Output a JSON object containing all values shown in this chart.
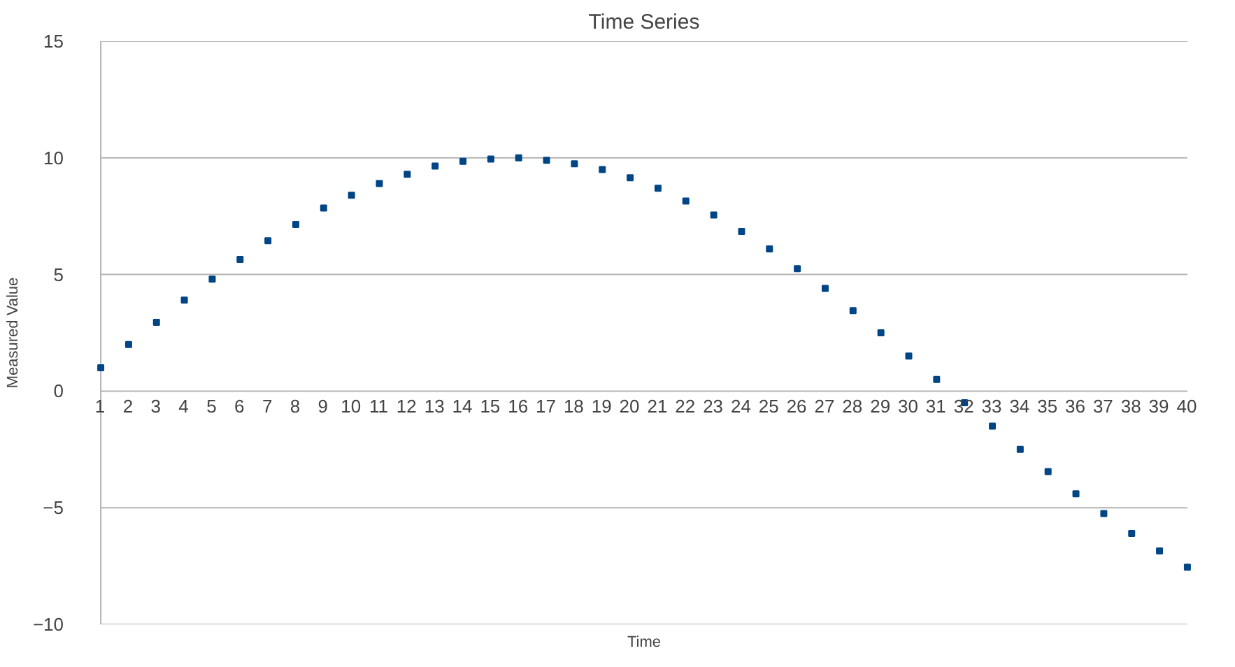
{
  "chart_data": {
    "type": "scatter",
    "title": "Time Series",
    "xlabel": "Time",
    "ylabel": "Measured Value",
    "x": [
      1,
      2,
      3,
      4,
      5,
      6,
      7,
      8,
      9,
      10,
      11,
      12,
      13,
      14,
      15,
      16,
      17,
      18,
      19,
      20,
      21,
      22,
      23,
      24,
      25,
      26,
      27,
      28,
      29,
      30,
      31,
      32,
      33,
      34,
      35,
      36,
      37,
      38,
      39,
      40
    ],
    "series": [
      {
        "color": "#004586",
        "values": [
          1.0,
          2.0,
          2.95,
          3.9,
          4.8,
          5.65,
          6.45,
          7.15,
          7.85,
          8.4,
          8.9,
          9.3,
          9.65,
          9.85,
          9.95,
          10.0,
          9.9,
          9.75,
          9.5,
          9.15,
          8.7,
          8.15,
          7.55,
          6.85,
          6.1,
          5.25,
          4.4,
          3.45,
          2.5,
          1.5,
          0.5,
          -0.5,
          -1.5,
          -2.5,
          -3.45,
          -4.4,
          -5.25,
          -6.1,
          -6.85,
          -7.55
        ]
      }
    ],
    "xlim": [
      1,
      40
    ],
    "xticks": [
      1,
      2,
      3,
      4,
      5,
      6,
      7,
      8,
      9,
      10,
      11,
      12,
      13,
      14,
      15,
      16,
      17,
      18,
      19,
      20,
      21,
      22,
      23,
      24,
      25,
      26,
      27,
      28,
      29,
      30,
      31,
      32,
      33,
      34,
      35,
      36,
      37,
      38,
      39,
      40
    ],
    "ylim": [
      -10,
      15
    ],
    "yticks": [
      -10,
      -5,
      0,
      5,
      10,
      15
    ],
    "grid": "y",
    "marker": "square"
  }
}
